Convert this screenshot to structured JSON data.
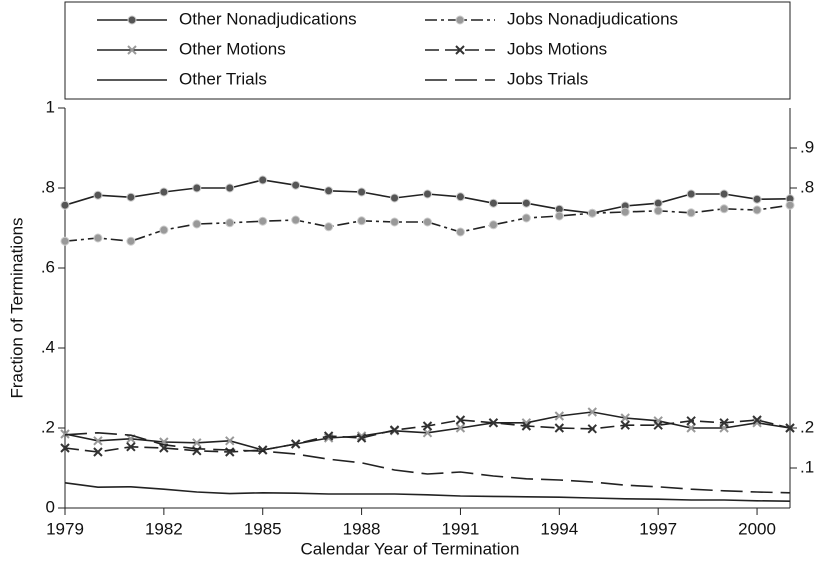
{
  "chart_data": {
    "type": "line",
    "x_label": "Calendar Year of Termination",
    "y_label": "Fraction of Terminations",
    "x": [
      1979,
      1980,
      1981,
      1982,
      1983,
      1984,
      1985,
      1986,
      1987,
      1988,
      1989,
      1990,
      1991,
      1992,
      1993,
      1994,
      1995,
      1996,
      1997,
      1998,
      1999,
      2000,
      2001
    ],
    "xlim": [
      1979,
      2001
    ],
    "xticks": [
      1979,
      1982,
      1985,
      1988,
      1991,
      1994,
      1997,
      2000
    ],
    "ylim": [
      0,
      1
    ],
    "yticks": [
      0,
      {
        "value": 0.2,
        "label": ".2"
      },
      {
        "value": 0.4,
        "label": ".4"
      },
      {
        "value": 0.6,
        "label": ".6"
      },
      {
        "value": 0.8,
        "label": ".8"
      },
      1
    ],
    "y2lim": [
      0,
      1
    ],
    "y2ticks": [
      {
        "value": 0.1,
        "label": ".1"
      },
      {
        "value": 0.2,
        "label": ".2"
      },
      {
        "value": 0.8,
        "label": ".8"
      },
      {
        "value": 0.9,
        "label": ".9"
      }
    ],
    "series": [
      {
        "name": "Other Nonadjudications",
        "color": "#222",
        "marker": "circle",
        "marker_color": "#555",
        "dash": "solid",
        "values": [
          0.757,
          0.782,
          0.777,
          0.79,
          0.8,
          0.8,
          0.82,
          0.807,
          0.793,
          0.79,
          0.775,
          0.785,
          0.778,
          0.762,
          0.762,
          0.747,
          0.737,
          0.755,
          0.762,
          0.785,
          0.785,
          0.772,
          0.773
        ]
      },
      {
        "name": "Jobs Nonadjudications",
        "color": "#222",
        "marker": "circle",
        "marker_color": "#999",
        "dash": "dash-dot",
        "values": [
          0.667,
          0.675,
          0.667,
          0.695,
          0.71,
          0.713,
          0.717,
          0.72,
          0.703,
          0.718,
          0.715,
          0.715,
          0.69,
          0.708,
          0.725,
          0.73,
          0.737,
          0.74,
          0.743,
          0.738,
          0.748,
          0.745,
          0.757
        ]
      },
      {
        "name": "Other Motions",
        "color": "#222",
        "marker": "cross",
        "marker_color": "#999",
        "dash": "solid",
        "values": [
          0.185,
          0.168,
          0.173,
          0.165,
          0.163,
          0.168,
          0.145,
          0.16,
          0.175,
          0.18,
          0.193,
          0.188,
          0.2,
          0.213,
          0.213,
          0.23,
          0.24,
          0.225,
          0.218,
          0.2,
          0.2,
          0.213,
          0.2
        ]
      },
      {
        "name": "Jobs Motions",
        "color": "#222",
        "marker": "cross",
        "marker_color": "#333",
        "dash": "dash",
        "values": [
          0.15,
          0.14,
          0.153,
          0.15,
          0.143,
          0.14,
          0.145,
          0.16,
          0.18,
          0.175,
          0.195,
          0.205,
          0.22,
          0.213,
          0.205,
          0.2,
          0.198,
          0.207,
          0.207,
          0.218,
          0.213,
          0.22,
          0.2
        ]
      },
      {
        "name": "Other Trials",
        "color": "#222",
        "marker": "none",
        "marker_color": "#222",
        "dash": "solid",
        "values": [
          0.063,
          0.052,
          0.053,
          0.047,
          0.04,
          0.036,
          0.038,
          0.037,
          0.035,
          0.035,
          0.035,
          0.033,
          0.03,
          0.029,
          0.028,
          0.027,
          0.025,
          0.023,
          0.022,
          0.02,
          0.02,
          0.018,
          0.017
        ]
      },
      {
        "name": "Jobs Trials",
        "color": "#222",
        "marker": "none",
        "marker_color": "#222",
        "dash": "long-dash",
        "values": [
          0.183,
          0.188,
          0.182,
          0.158,
          0.148,
          0.145,
          0.142,
          0.135,
          0.122,
          0.113,
          0.095,
          0.085,
          0.09,
          0.08,
          0.073,
          0.07,
          0.065,
          0.057,
          0.053,
          0.047,
          0.043,
          0.04,
          0.038
        ]
      }
    ]
  }
}
